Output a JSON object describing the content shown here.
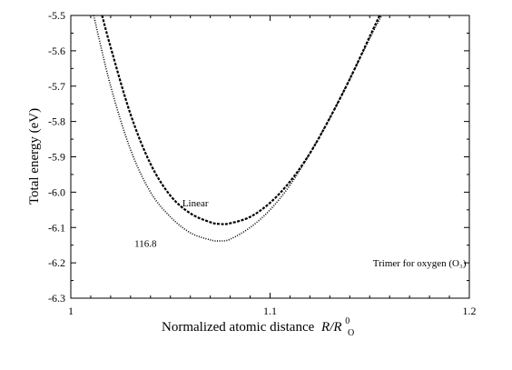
{
  "chart_data": {
    "type": "line",
    "title": "",
    "xlabel": "Normalized atomic distance",
    "xlabel_math_var": "R/R",
    "xlabel_math_sup": "0",
    "xlabel_math_sub": "O",
    "ylabel": "Total energy (eV)",
    "xlim": [
      1.0,
      1.2
    ],
    "ylim": [
      -6.3,
      -5.5
    ],
    "x_ticks": [
      1.0,
      1.1,
      1.2
    ],
    "x_tick_labels": [
      "1",
      "1.1",
      "1.2"
    ],
    "y_ticks": [
      -6.3,
      -6.2,
      -6.1,
      -6.0,
      -5.9,
      -5.8,
      -5.7,
      -5.6,
      -5.5
    ],
    "y_tick_labels": [
      "-6.3",
      "-6.2",
      "-6.1",
      "-6.0",
      "-5.9",
      "-5.8",
      "-5.7",
      "-5.6",
      "-5.5"
    ],
    "grid": false,
    "legend": "none",
    "series": [
      {
        "name": "Linear",
        "style": "dashed",
        "x": [
          1.0157,
          1.02,
          1.03,
          1.04,
          1.05,
          1.06,
          1.07,
          1.075,
          1.08,
          1.09,
          1.1,
          1.11,
          1.12,
          1.13,
          1.14,
          1.15,
          1.155
        ],
        "y": [
          -5.5,
          -5.59,
          -5.78,
          -5.92,
          -6.01,
          -6.06,
          -6.085,
          -6.09,
          -6.088,
          -6.07,
          -6.03,
          -5.97,
          -5.89,
          -5.79,
          -5.68,
          -5.56,
          -5.5
        ]
      },
      {
        "name": "116.8",
        "style": "dotted",
        "x": [
          1.0115,
          1.02,
          1.03,
          1.04,
          1.05,
          1.06,
          1.07,
          1.075,
          1.08,
          1.09,
          1.1,
          1.11,
          1.12,
          1.13,
          1.14,
          1.15,
          1.156
        ],
        "y": [
          -5.5,
          -5.7,
          -5.88,
          -6.0,
          -6.07,
          -6.115,
          -6.135,
          -6.138,
          -6.133,
          -6.1,
          -6.05,
          -5.98,
          -5.89,
          -5.79,
          -5.68,
          -5.565,
          -5.5
        ]
      }
    ],
    "annotations": [
      {
        "text": "Linear",
        "x": 1.0625,
        "y": -6.04
      },
      {
        "text": "116.8",
        "x": 1.0375,
        "y": -6.155
      },
      {
        "text": "Trimer for oxygen (O₃)",
        "x": 1.175,
        "y": -6.21
      }
    ]
  }
}
